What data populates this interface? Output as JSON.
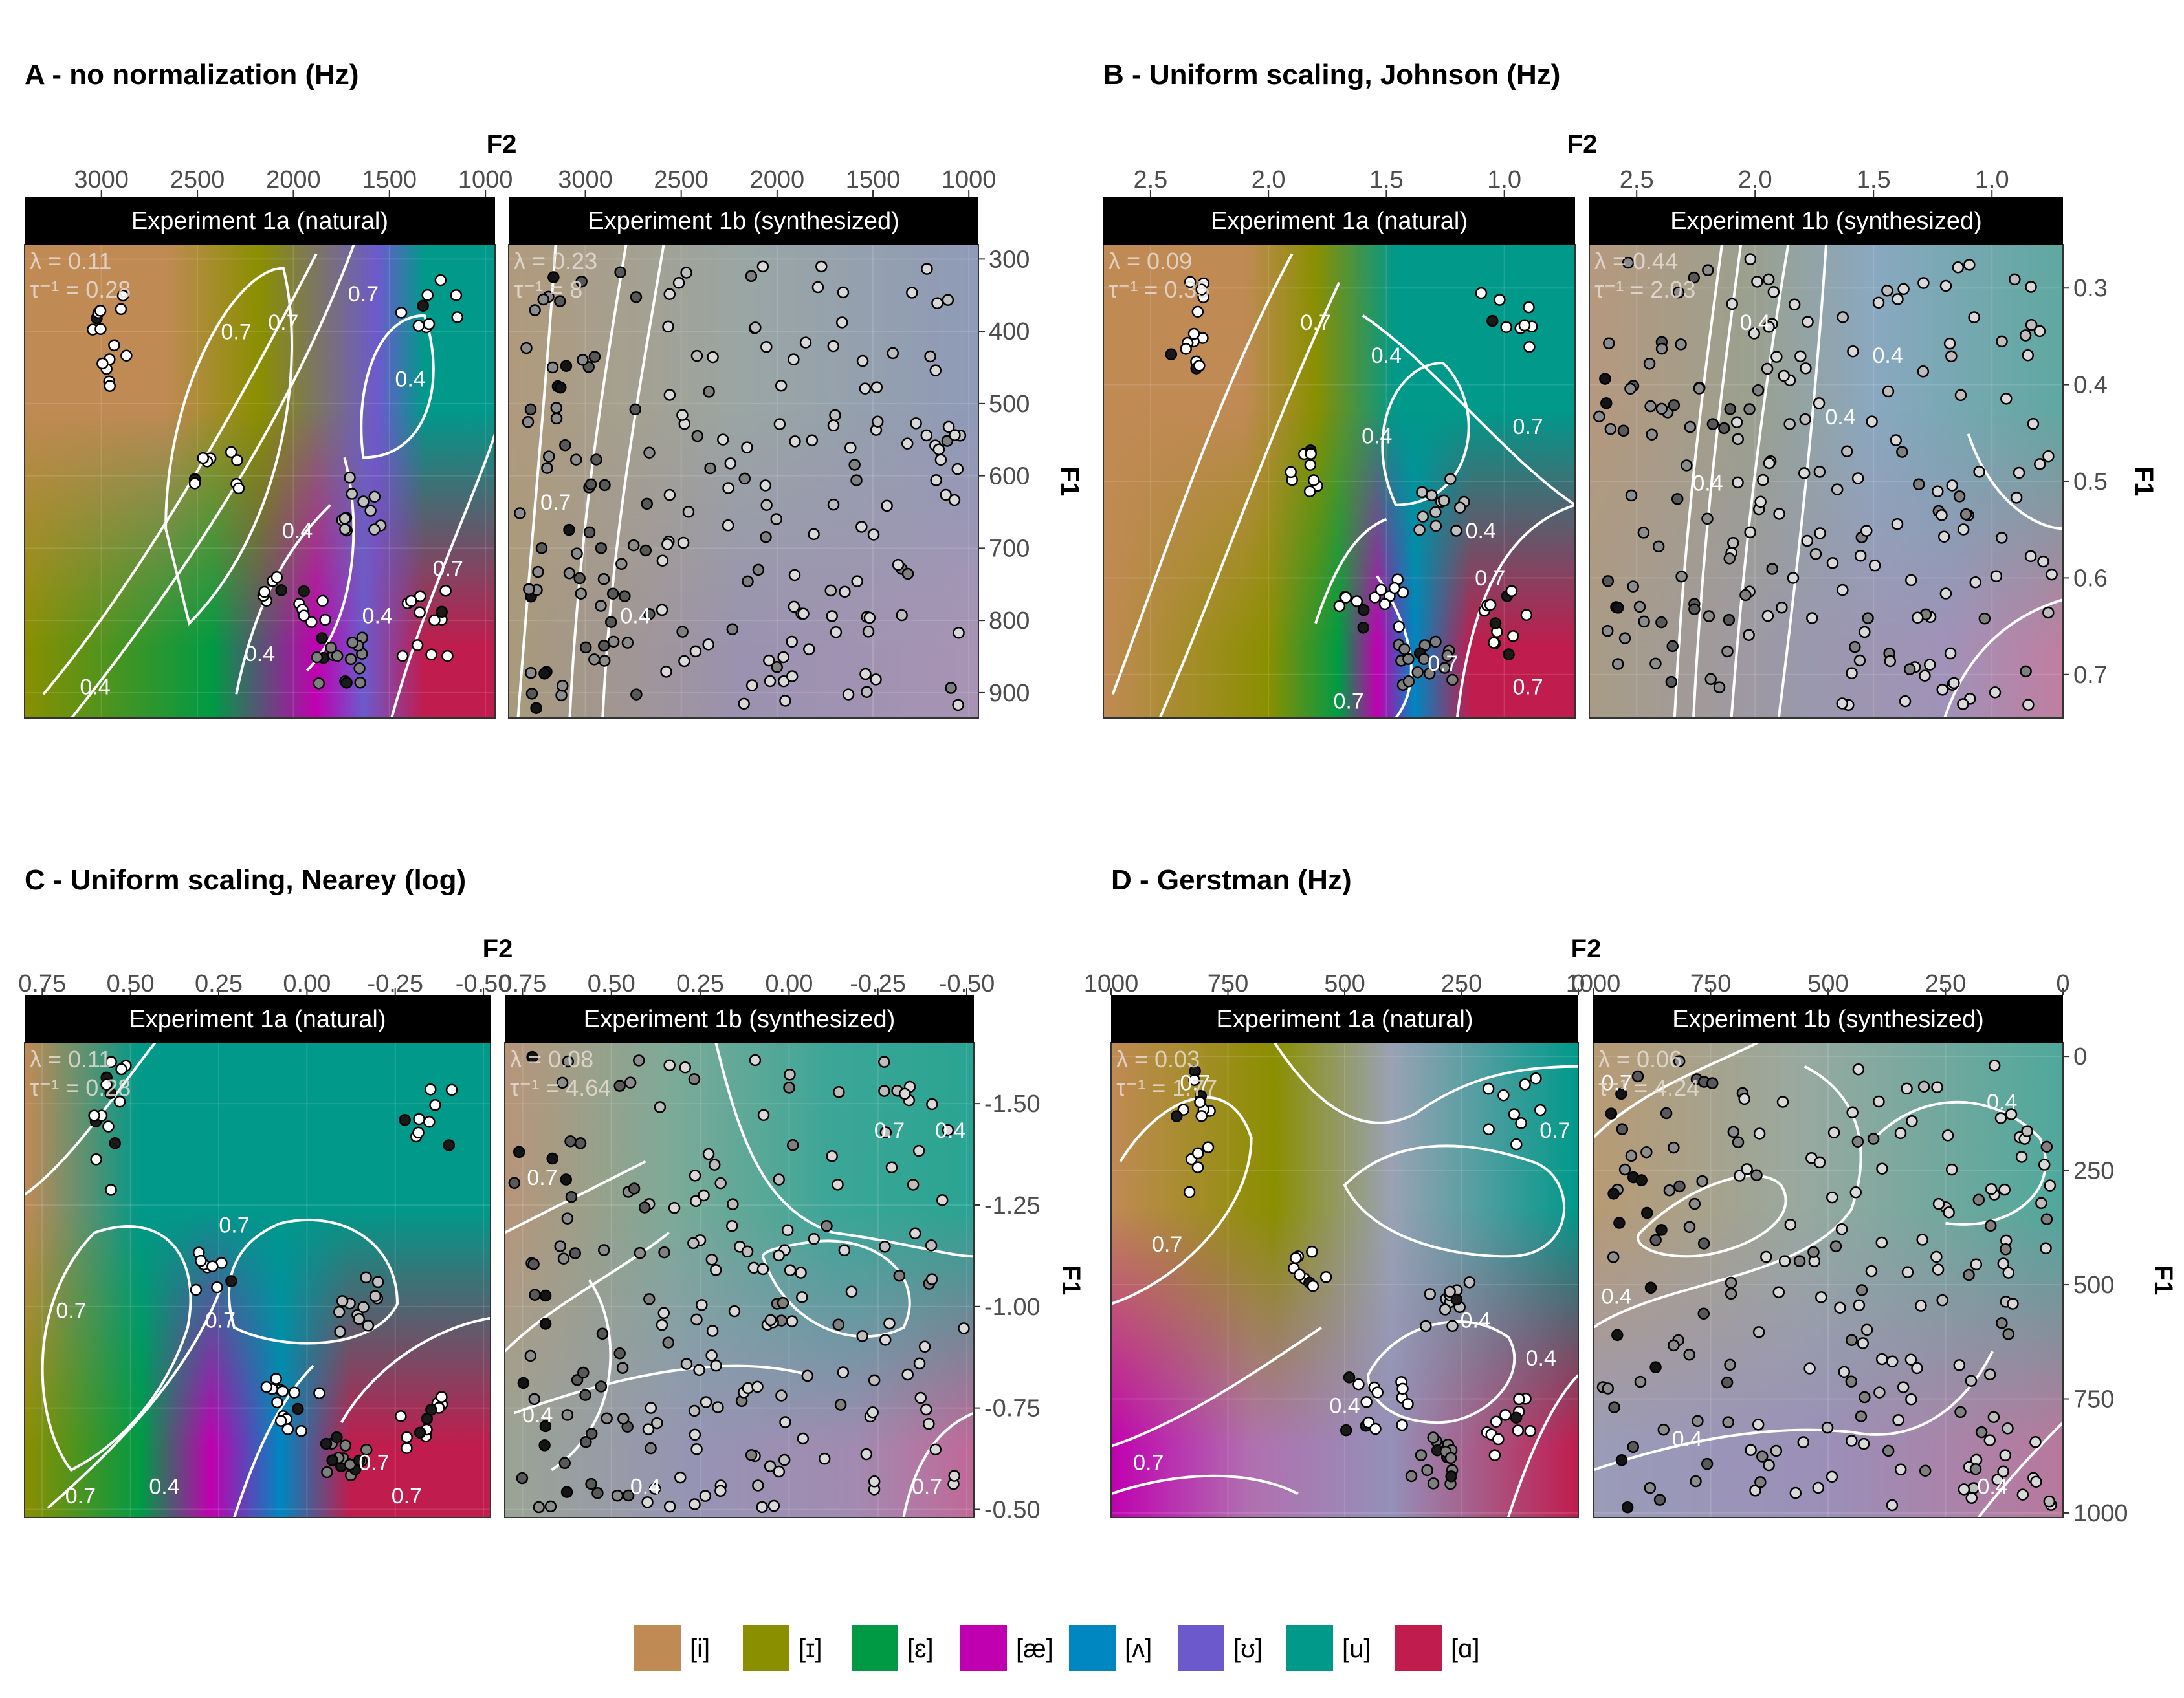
{
  "legend": {
    "items": [
      {
        "label": "[i]",
        "color": "#c08a55"
      },
      {
        "label": "[ɪ]",
        "color": "#8a8f00"
      },
      {
        "label": "[ɛ]",
        "color": "#009a44"
      },
      {
        "label": "[æ]",
        "color": "#c000b0"
      },
      {
        "label": "[ʌ]",
        "color": "#0086c0"
      },
      {
        "label": "[ʊ]",
        "color": "#6c5acd"
      },
      {
        "label": "[u]",
        "color": "#00998a"
      },
      {
        "label": "[ɑ]",
        "color": "#c01c4e"
      }
    ]
  },
  "chart_data": [
    {
      "type": "heatmap",
      "title": "A - no normalization (Hz)",
      "xlabel": "F2",
      "ylabel": "F1",
      "x_ticks": [
        "3000",
        "2500",
        "2000",
        "1500",
        "1000"
      ],
      "x_tick_values": [
        3000,
        2500,
        2000,
        1500,
        1000
      ],
      "xlim": [
        3400,
        950
      ],
      "y_ticks": [
        "300",
        "400",
        "500",
        "600",
        "700",
        "800",
        "900"
      ],
      "y_tick_values": [
        300,
        400,
        500,
        600,
        700,
        800,
        900
      ],
      "ylim": [
        280,
        935
      ],
      "facets": [
        {
          "strip": "Experiment 1a (natural)",
          "lambda": "λ = 0.11",
          "tau": "τ⁻¹ = 0.28",
          "contour_labels": [
            "0.7",
            "0.7",
            "0.4",
            "0.4",
            "0.7",
            "0.4",
            "0.7",
            "0.4",
            "0.4"
          ]
        },
        {
          "strip": "Experiment 1b (synthesized)",
          "lambda": "λ = 0.23",
          "tau": "τ⁻¹ = 8",
          "contour_labels": [
            "0.7",
            "0.4"
          ]
        }
      ]
    },
    {
      "type": "heatmap",
      "title": "B - Uniform scaling, Johnson (Hz)",
      "xlabel": "F2",
      "ylabel": "F1",
      "x_ticks": [
        "2.5",
        "2.0",
        "1.5",
        "1.0"
      ],
      "x_tick_values": [
        2.5,
        2.0,
        1.5,
        1.0
      ],
      "xlim": [
        2.7,
        0.7
      ],
      "y_ticks": [
        "0.3",
        "0.4",
        "0.5",
        "0.6",
        "0.7"
      ],
      "y_tick_values": [
        0.3,
        0.4,
        0.5,
        0.6,
        0.7
      ],
      "ylim": [
        0.255,
        0.745
      ],
      "facets": [
        {
          "strip": "Experiment 1a (natural)",
          "lambda": "λ = 0.09",
          "tau": "τ⁻¹ = 0.35",
          "contour_labels": [
            "0.7",
            "0.7",
            "0.4",
            "0.7",
            "0.4",
            "0.4",
            "0.7",
            "0.7",
            "0.7"
          ]
        },
        {
          "strip": "Experiment 1b (synthesized)",
          "lambda": "λ = 0.44",
          "tau": "τ⁻¹ = 2.03",
          "contour_labels": [
            "0.4",
            "0.4",
            "0.4",
            "0.4"
          ]
        }
      ]
    },
    {
      "type": "heatmap",
      "title": "C - Uniform scaling, Nearey (log)",
      "xlabel": "F2",
      "ylabel": "F1",
      "x_ticks": [
        "0.75",
        "0.50",
        "0.25",
        "0.00",
        "-0.25",
        "-0.50"
      ],
      "x_tick_values": [
        0.75,
        0.5,
        0.25,
        0.0,
        -0.25,
        -0.5
      ],
      "xlim": [
        0.8,
        -0.52
      ],
      "y_ticks": [
        "-1.50",
        "-1.25",
        "-1.00",
        "-0.75",
        "-0.50"
      ],
      "y_tick_values": [
        -1.5,
        -1.25,
        -1.0,
        -0.75,
        -0.5
      ],
      "ylim": [
        -1.65,
        -0.48
      ],
      "facets": [
        {
          "strip": "Experiment 1a (natural)",
          "lambda": "λ = 0.11",
          "tau": "τ⁻¹ = 0.28",
          "contour_labels": [
            "0.7",
            "0.7",
            "0.7",
            "0.7",
            "0.7",
            "0.4",
            "0.7"
          ]
        },
        {
          "strip": "Experiment 1b (synthesized)",
          "lambda": "λ = 0.08",
          "tau": "τ⁻¹ = 4.64",
          "contour_labels": [
            "0.7",
            "0.7",
            "0.4",
            "0.4",
            "0.4",
            "0.7"
          ]
        }
      ]
    },
    {
      "type": "heatmap",
      "title": "D - Gerstman (Hz)",
      "xlabel": "F2",
      "ylabel": "F1",
      "x_ticks": [
        "1000",
        "750",
        "500",
        "250",
        "0"
      ],
      "x_tick_values": [
        1000,
        750,
        500,
        250,
        0
      ],
      "xlim": [
        1000,
        0
      ],
      "y_ticks": [
        "0",
        "250",
        "500",
        "750",
        "1000"
      ],
      "y_tick_values": [
        0,
        250,
        500,
        750,
        1000
      ],
      "ylim": [
        -30,
        1010
      ],
      "facets": [
        {
          "strip": "Experiment 1a (natural)",
          "lambda": "λ = 0.03",
          "tau": "τ⁻¹ = 1.77",
          "contour_labels": [
            "0.7",
            "0.7",
            "0.7",
            "0.4",
            "0.4",
            "0.7",
            "0.4"
          ]
        },
        {
          "strip": "Experiment 1b (synthesized)",
          "lambda": "λ = 0.06",
          "tau": "τ⁻¹ = 4.24",
          "contour_labels": [
            "0.7",
            "0.4",
            "0.4",
            "0.4",
            "0.4"
          ]
        }
      ]
    }
  ]
}
